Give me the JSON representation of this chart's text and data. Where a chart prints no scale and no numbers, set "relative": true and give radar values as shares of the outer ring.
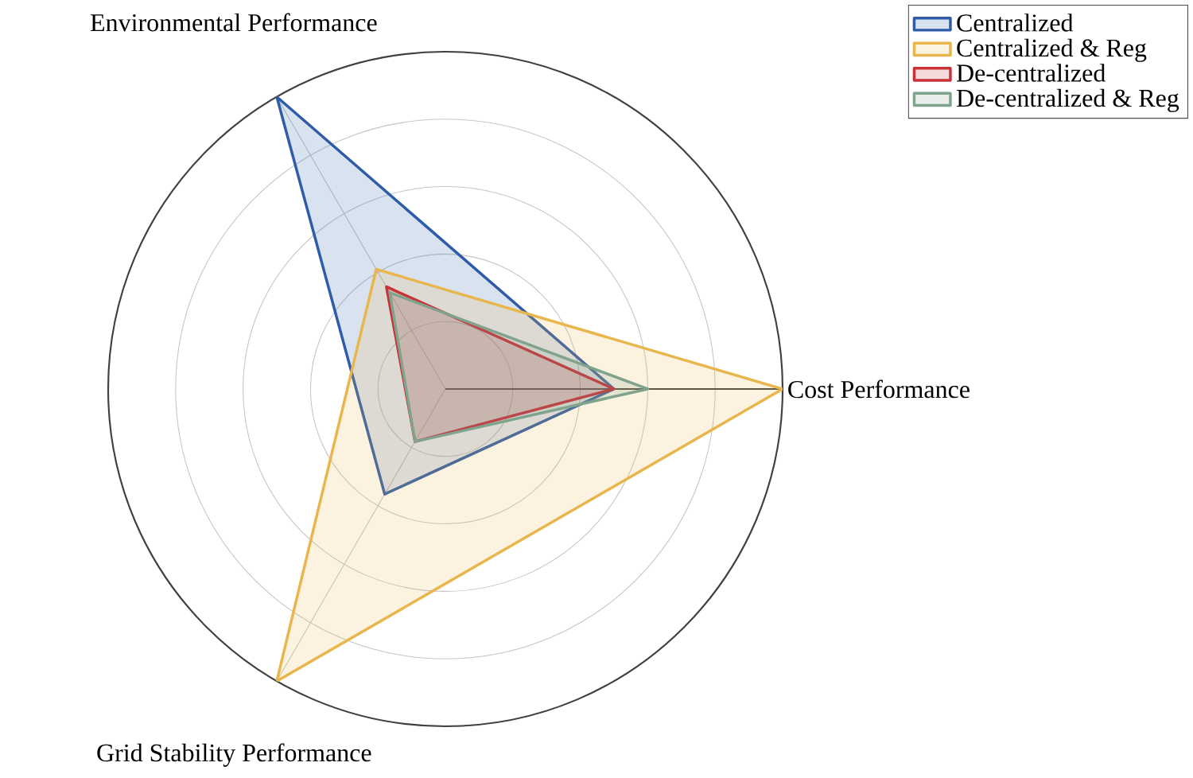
{
  "chart_data": {
    "type": "radar",
    "relative": true,
    "categories": [
      "Cost Performance",
      "Grid Stability Performance",
      "Environmental Performance"
    ],
    "series": [
      {
        "name": "Centralized",
        "color": "#2e5ca8",
        "values": [
          0.5,
          0.36,
          1.0
        ]
      },
      {
        "name": "Centralized & Reg",
        "color": "#e8b64c",
        "values": [
          1.0,
          1.0,
          0.41
        ]
      },
      {
        "name": "De-centralized",
        "color": "#c8333a",
        "values": [
          0.5,
          0.18,
          0.35
        ]
      },
      {
        "name": "De-centralized & Reg",
        "color": "#7fa38d",
        "values": [
          0.6,
          0.18,
          0.33
        ]
      }
    ],
    "grid": true,
    "legend": "top right"
  }
}
